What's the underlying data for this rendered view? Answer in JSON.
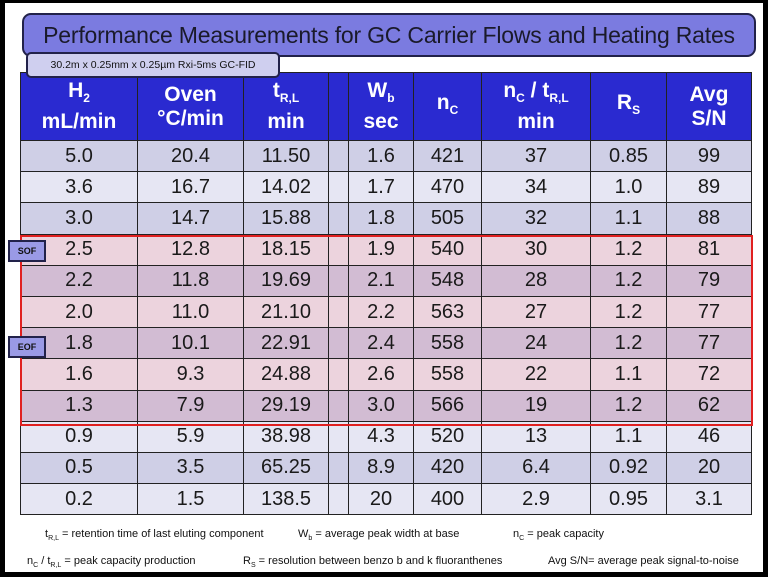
{
  "title": "Performance Measurements for GC Carrier Flows and Heating Rates",
  "subtitle": "30.2m x 0.25mm x 0.25µm Rxi-5ms GC-FID",
  "headers": [
    {
      "main": "H",
      "sub": "2",
      "line2": "mL/min"
    },
    {
      "main": "Oven",
      "sub": "",
      "line2": "°C/min"
    },
    {
      "main": "t",
      "sub": "R,L",
      "line2": "min"
    },
    {
      "main": "",
      "sub": "",
      "line2": ""
    },
    {
      "main": "W",
      "sub": "b",
      "line2": "sec"
    },
    {
      "main": "n",
      "sub": "C",
      "line2": ""
    },
    {
      "main": "n",
      "sub": "C",
      "main2": " / t",
      "sub2": "R,L",
      "line2": "min"
    },
    {
      "main": "R",
      "sub": "S",
      "line2": ""
    },
    {
      "main": "Avg",
      "sub": "",
      "line2": "S/N"
    }
  ],
  "rows": [
    [
      "5.0",
      "20.4",
      "11.50",
      "",
      "1.6",
      "421",
      "37",
      "0.85",
      "99"
    ],
    [
      "3.6",
      "16.7",
      "14.02",
      "",
      "1.7",
      "470",
      "34",
      "1.0",
      "89"
    ],
    [
      "3.0",
      "14.7",
      "15.88",
      "",
      "1.8",
      "505",
      "32",
      "1.1",
      "88"
    ],
    [
      "2.5",
      "12.8",
      "18.15",
      "",
      "1.9",
      "540",
      "30",
      "1.2",
      "81"
    ],
    [
      "2.2",
      "11.8",
      "19.69",
      "",
      "2.1",
      "548",
      "28",
      "1.2",
      "79"
    ],
    [
      "2.0",
      "11.0",
      "21.10",
      "",
      "2.2",
      "563",
      "27",
      "1.2",
      "77"
    ],
    [
      "1.8",
      "10.1",
      "22.91",
      "",
      "2.4",
      "558",
      "24",
      "1.2",
      "77"
    ],
    [
      "1.6",
      "9.3",
      "24.88",
      "",
      "2.6",
      "558",
      "22",
      "1.1",
      "72"
    ],
    [
      "1.3",
      "7.9",
      "29.19",
      "",
      "3.0",
      "566",
      "19",
      "1.2",
      "62"
    ],
    [
      "0.9",
      "5.9",
      "38.98",
      "",
      "4.3",
      "520",
      "13",
      "1.1",
      "46"
    ],
    [
      "0.5",
      "3.5",
      "65.25",
      "",
      "8.9",
      "420",
      "6.4",
      "0.92",
      "20"
    ],
    [
      "0.2",
      "1.5",
      "138.5",
      "",
      "20",
      "400",
      "2.9",
      "0.95",
      "3.1"
    ]
  ],
  "highlighted_rows": [
    3,
    4,
    5,
    6,
    7,
    8
  ],
  "tags": {
    "sof": "SOF",
    "eof": "EOF"
  },
  "legend": {
    "trl": {
      "sym": "t",
      "sub": "R,L",
      "text": " = retention time of last eluting component"
    },
    "wb": {
      "sym": "W",
      "sub": "b",
      "text": " = average peak width at base"
    },
    "nc": {
      "sym": "n",
      "sub": "C",
      "text": " = peak capacity"
    },
    "ncp": {
      "sym": "n",
      "sub": "C",
      "sym2": " / t",
      "sub2": "R,L",
      "text": " = peak capacity production"
    },
    "rs": {
      "sym": "R",
      "sub": "S",
      "text": " = resolution between  benzo b and k fluoranthenes"
    },
    "sn": {
      "text": "Avg S/N= average peak signal-to-noise"
    }
  },
  "colors": {
    "header": "#2a2ad0",
    "title_bar": "#7b7be0",
    "highlight_border": "#e02020"
  }
}
